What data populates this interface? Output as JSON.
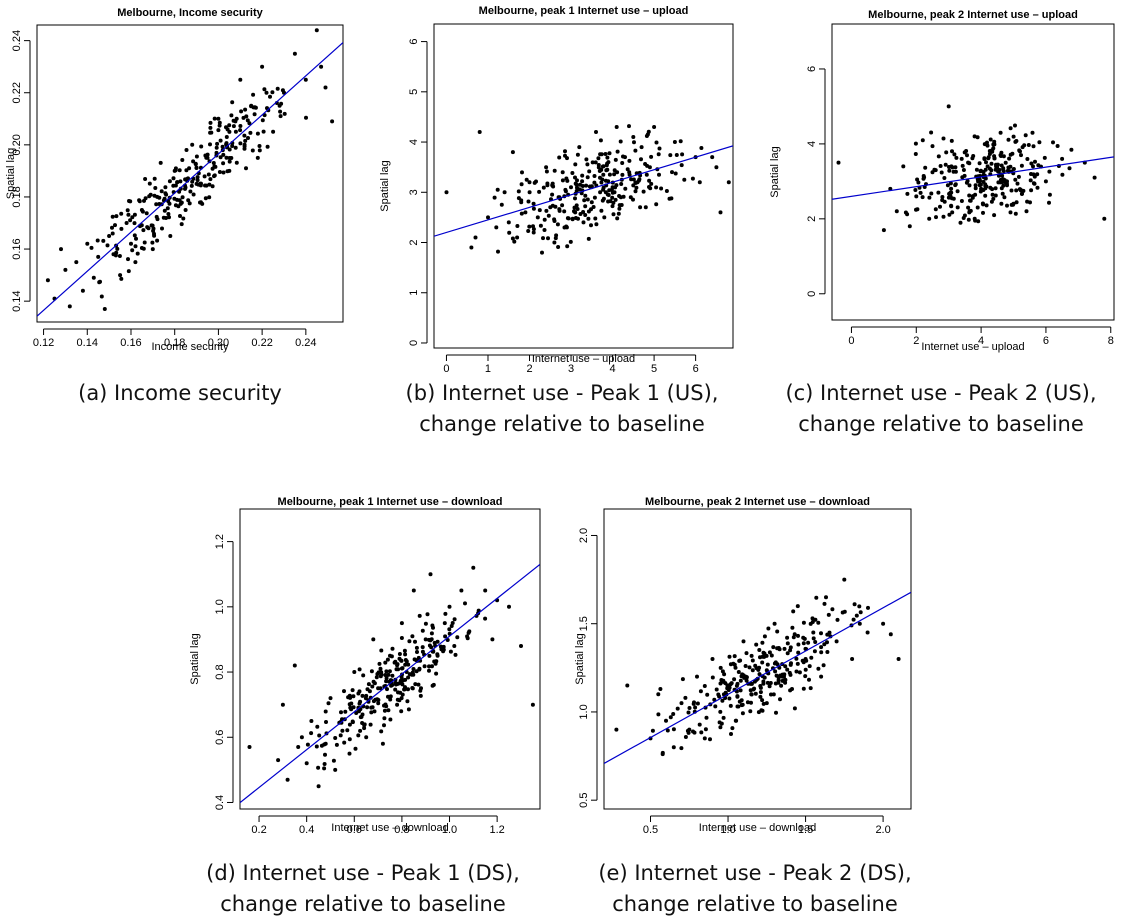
{
  "chart_data": [
    {
      "id": "a",
      "type": "scatter",
      "title": "Melbourne, Income security",
      "xlabel": "Income security",
      "ylabel": "Spatial lag",
      "xlim": [
        0.117,
        0.257
      ],
      "ylim": [
        0.132,
        0.246
      ],
      "xticks": [
        0.12,
        0.14,
        0.16,
        0.18,
        0.2,
        0.22,
        0.24
      ],
      "xtick_labels": [
        "0.12",
        "0.14",
        "0.16",
        "0.18",
        "0.20",
        "0.22",
        "0.24"
      ],
      "yticks": [
        0.14,
        0.16,
        0.18,
        0.2,
        0.22,
        0.24
      ],
      "ytick_labels": [
        "0.14",
        "0.16",
        "0.18",
        "0.20",
        "0.22",
        "0.24"
      ],
      "fit_line": {
        "slope": 0.75,
        "intercept": 0.0465
      },
      "point_color": "#000000",
      "line_color": "#0000cc",
      "points": {
        "n": 300,
        "x": [
          0.122,
          0.125,
          0.128,
          0.13,
          0.132,
          0.135,
          0.138,
          0.14,
          0.143,
          0.145,
          0.148,
          0.15,
          0.152,
          0.155,
          0.158,
          0.16,
          0.162,
          0.165,
          0.168,
          0.17,
          0.172,
          0.175,
          0.178,
          0.18,
          0.182,
          0.185,
          0.188,
          0.19,
          0.192,
          0.195,
          0.198,
          0.2,
          0.202,
          0.205,
          0.208,
          0.21,
          0.212,
          0.215,
          0.218,
          0.22,
          0.222,
          0.225,
          0.228,
          0.23,
          0.235,
          0.24,
          0.245,
          0.247,
          0.249,
          0.252
        ],
        "y": [
          0.148,
          0.141,
          0.16,
          0.152,
          0.138,
          0.155,
          0.144,
          0.162,
          0.149,
          0.157,
          0.137,
          0.165,
          0.158,
          0.15,
          0.17,
          0.162,
          0.155,
          0.175,
          0.168,
          0.16,
          0.18,
          0.172,
          0.165,
          0.19,
          0.182,
          0.175,
          0.2,
          0.185,
          0.178,
          0.195,
          0.188,
          0.21,
          0.198,
          0.19,
          0.205,
          0.225,
          0.2,
          0.215,
          0.195,
          0.23,
          0.22,
          0.205,
          0.215,
          0.22,
          0.235,
          0.225,
          0.244,
          0.23,
          0.222,
          0.209
        ]
      }
    },
    {
      "id": "b",
      "type": "scatter",
      "title": "Melbourne, peak 1 Internet use – upload",
      "xlabel": "Internet use – upload",
      "ylabel": "Spatial lag",
      "xlim": [
        -0.3,
        6.9
      ],
      "ylim": [
        -0.1,
        6.35
      ],
      "xticks": [
        0,
        1,
        2,
        3,
        4,
        5,
        6
      ],
      "xtick_labels": [
        "0",
        "1",
        "2",
        "3",
        "4",
        "5",
        "6"
      ],
      "yticks": [
        0,
        1,
        2,
        3,
        4,
        5,
        6
      ],
      "ytick_labels": [
        "0",
        "1",
        "2",
        "3",
        "4",
        "5",
        "6"
      ],
      "fit_line": {
        "slope": 0.25,
        "intercept": 2.2
      },
      "point_color": "#000000",
      "line_color": "#0000cc",
      "points": {
        "n": 300,
        "x": [
          0.0,
          0.6,
          0.7,
          0.8,
          1.0,
          1.2,
          1.4,
          1.5,
          1.6,
          1.7,
          1.8,
          1.9,
          2.0,
          2.1,
          2.2,
          2.3,
          2.4,
          2.5,
          2.6,
          2.7,
          2.8,
          2.9,
          3.0,
          3.1,
          3.2,
          3.3,
          3.4,
          3.5,
          3.6,
          3.7,
          3.8,
          3.9,
          4.0,
          4.1,
          4.2,
          4.3,
          4.4,
          4.5,
          4.6,
          4.7,
          4.8,
          4.9,
          5.0,
          5.5,
          6.0,
          6.1,
          6.4,
          6.5,
          6.6,
          6.8
        ],
        "y": [
          3.0,
          1.9,
          2.1,
          4.2,
          2.5,
          2.3,
          3.0,
          2.4,
          3.8,
          2.1,
          2.8,
          2.6,
          3.2,
          2.2,
          2.5,
          1.8,
          3.5,
          2.7,
          2.0,
          2.9,
          3.4,
          2.3,
          3.1,
          2.6,
          3.9,
          2.4,
          3.3,
          2.8,
          4.2,
          3.0,
          2.5,
          3.6,
          3.1,
          4.3,
          2.9,
          3.7,
          3.4,
          4.1,
          3.2,
          3.9,
          2.7,
          3.5,
          4.3,
          4.0,
          3.7,
          3.2,
          3.7,
          3.5,
          2.6,
          3.2
        ]
      }
    },
    {
      "id": "c",
      "type": "scatter",
      "title": "Melbourne, peak 2 Internet use – upload",
      "xlabel": "Internet use – upload",
      "ylabel": "Spatial lag",
      "xlim": [
        -0.6,
        8.1
      ],
      "ylim": [
        -0.7,
        7.2
      ],
      "xticks": [
        0,
        2,
        4,
        6,
        8
      ],
      "xtick_labels": [
        "0",
        "2",
        "4",
        "6",
        "8"
      ],
      "yticks": [
        0,
        2,
        4,
        6
      ],
      "ytick_labels": [
        "0",
        "2",
        "4",
        "6"
      ],
      "fit_line": {
        "slope": 0.13,
        "intercept": 2.6
      },
      "point_color": "#000000",
      "line_color": "#0000cc",
      "points": {
        "n": 300,
        "x": [
          -0.4,
          1.0,
          1.2,
          1.4,
          1.6,
          1.8,
          2.0,
          2.2,
          2.4,
          2.6,
          2.8,
          3.0,
          3.2,
          3.4,
          3.6,
          3.8,
          4.0,
          4.2,
          4.4,
          4.6,
          4.8,
          5.0,
          5.2,
          5.4,
          5.6,
          6.0,
          6.5,
          7.2,
          7.5,
          7.8
        ],
        "y": [
          3.5,
          1.7,
          2.8,
          2.2,
          3.4,
          1.8,
          2.6,
          4.1,
          2.0,
          3.3,
          2.5,
          5.0,
          2.9,
          3.6,
          2.3,
          4.2,
          2.8,
          3.4,
          2.1,
          4.3,
          3.0,
          2.4,
          3.8,
          2.2,
          3.4,
          3.0,
          3.6,
          3.5,
          3.1,
          2.0
        ]
      }
    },
    {
      "id": "d",
      "type": "scatter",
      "title": "Melbourne, peak 1 Internet use – download",
      "xlabel": "Internet use – download",
      "ylabel": "Spatial lag",
      "xlim": [
        0.12,
        1.38
      ],
      "ylim": [
        0.38,
        1.3
      ],
      "xticks": [
        0.2,
        0.4,
        0.6,
        0.8,
        1.0,
        1.2
      ],
      "xtick_labels": [
        "0.2",
        "0.4",
        "0.6",
        "0.8",
        "1.0",
        "1.2"
      ],
      "yticks": [
        0.4,
        0.6,
        0.8,
        1.0,
        1.2
      ],
      "ytick_labels": [
        "0.4",
        "0.6",
        "0.8",
        "1.0",
        "1.2"
      ],
      "fit_line": {
        "slope": 0.58,
        "intercept": 0.33
      },
      "point_color": "#000000",
      "line_color": "#0000cc",
      "points": {
        "n": 300,
        "x": [
          0.16,
          0.28,
          0.3,
          0.32,
          0.35,
          0.38,
          0.4,
          0.42,
          0.45,
          0.48,
          0.5,
          0.52,
          0.55,
          0.58,
          0.6,
          0.62,
          0.65,
          0.68,
          0.7,
          0.72,
          0.75,
          0.78,
          0.8,
          0.82,
          0.85,
          0.88,
          0.9,
          0.92,
          0.95,
          0.98,
          1.0,
          1.02,
          1.05,
          1.08,
          1.1,
          1.12,
          1.15,
          1.18,
          1.2,
          1.25,
          1.3,
          1.35
        ],
        "y": [
          0.57,
          0.53,
          0.7,
          0.47,
          0.82,
          0.6,
          0.52,
          0.65,
          0.45,
          0.58,
          0.72,
          0.5,
          0.62,
          0.55,
          0.8,
          0.68,
          0.6,
          0.9,
          0.75,
          0.58,
          0.85,
          0.7,
          0.95,
          0.8,
          1.05,
          0.75,
          0.9,
          1.1,
          0.85,
          0.95,
          1.0,
          0.88,
          1.05,
          0.92,
          1.12,
          0.98,
          1.05,
          0.9,
          1.02,
          1.0,
          0.88,
          0.7
        ]
      }
    },
    {
      "id": "e",
      "type": "scatter",
      "title": "Melbourne, peak 2 Internet use – download",
      "xlabel": "Internet use – download",
      "ylabel": "Spatial lag",
      "xlim": [
        0.2,
        2.18
      ],
      "ylim": [
        0.45,
        2.15
      ],
      "xticks": [
        0.5,
        1.0,
        1.5,
        2.0
      ],
      "xtick_labels": [
        "0.5",
        "1.0",
        "1.5",
        "2.0"
      ],
      "yticks": [
        0.5,
        1.0,
        1.5,
        2.0
      ],
      "ytick_labels": [
        "0.5",
        "1.0",
        "1.5",
        "2.0"
      ],
      "fit_line": {
        "slope": 0.49,
        "intercept": 0.61
      },
      "point_color": "#000000",
      "line_color": "#0000cc",
      "points": {
        "n": 300,
        "x": [
          0.28,
          0.35,
          0.5,
          0.55,
          0.6,
          0.65,
          0.7,
          0.75,
          0.8,
          0.85,
          0.9,
          0.95,
          1.0,
          1.05,
          1.1,
          1.15,
          1.2,
          1.25,
          1.3,
          1.35,
          1.4,
          1.45,
          1.5,
          1.55,
          1.6,
          1.65,
          1.7,
          1.75,
          1.8,
          1.85,
          1.9,
          2.0,
          2.05,
          2.1
        ],
        "y": [
          0.9,
          1.15,
          0.85,
          1.1,
          0.95,
          0.8,
          1.05,
          0.9,
          1.2,
          0.85,
          1.3,
          1.0,
          1.15,
          0.95,
          1.4,
          1.1,
          1.25,
          1.05,
          1.5,
          1.2,
          1.35,
          1.6,
          1.3,
          1.45,
          1.2,
          1.55,
          1.4,
          1.75,
          1.3,
          1.5,
          1.45,
          1.5,
          1.44,
          1.3
        ]
      }
    }
  ],
  "captions": {
    "a": {
      "line1": "(a) Income security",
      "line2": ""
    },
    "b": {
      "line1": "(b) Internet use - Peak 1 (US),",
      "line2": "change relative to baseline"
    },
    "c": {
      "line1": "(c) Internet use - Peak 2 (US),",
      "line2": "change relative to baseline"
    },
    "d": {
      "line1": "(d) Internet use - Peak 1 (DS),",
      "line2": "change relative to baseline"
    },
    "e": {
      "line1": "(e) Internet use - Peak 2 (DS),",
      "line2": "change relative to baseline"
    }
  }
}
